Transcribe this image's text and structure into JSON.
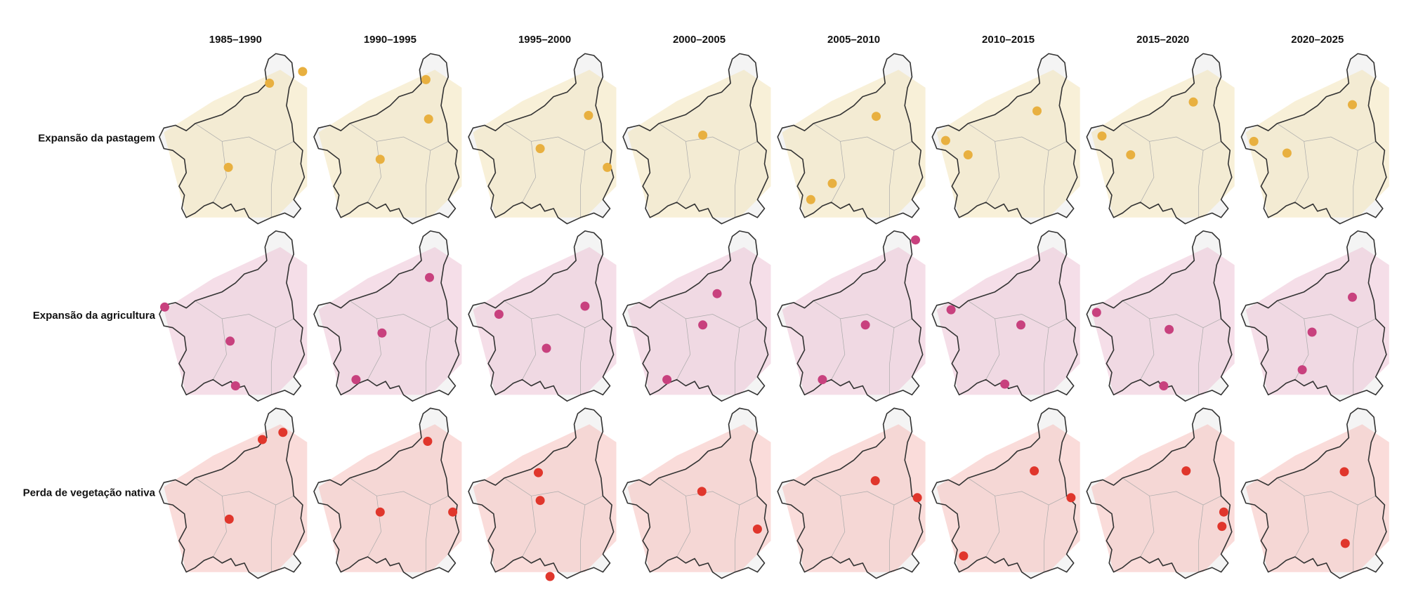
{
  "column_headers": [
    "1985–1990",
    "1990–1995",
    "1995–2000",
    "2000–2005",
    "2005–2010",
    "2010–2015",
    "2015–2020",
    "2020–2025"
  ],
  "row_labels": [
    "Expansão da pastagem",
    "Expansão da agricultura",
    "Perda de vegetação nativa"
  ]
}
